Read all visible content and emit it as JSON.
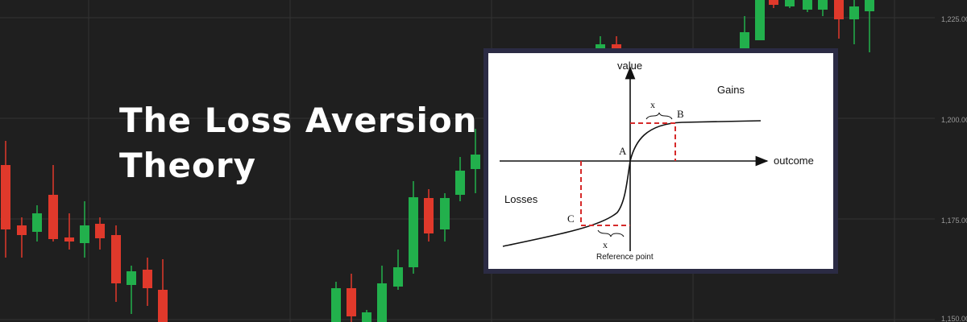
{
  "title": {
    "line1": "The Loss Aversion",
    "line2": "Theory"
  },
  "price_axis": {
    "labels": [
      "1,225.00",
      "1,200.00",
      "1,175.00",
      "1,150.00"
    ]
  },
  "diagram": {
    "value_label": "value",
    "outcome_label": "outcome",
    "gains_label": "Gains",
    "losses_label": "Losses",
    "reference_label": "Reference point",
    "point_a": "A",
    "point_b": "B",
    "point_c": "C",
    "delta_top": "x",
    "delta_bottom": "x"
  },
  "colors": {
    "background": "#1f1f1f",
    "grid": "#333333",
    "bull": "#22b04c",
    "bear": "#e0392b",
    "panel_border": "#2b2b44",
    "dashed": "#d62a2a"
  }
}
